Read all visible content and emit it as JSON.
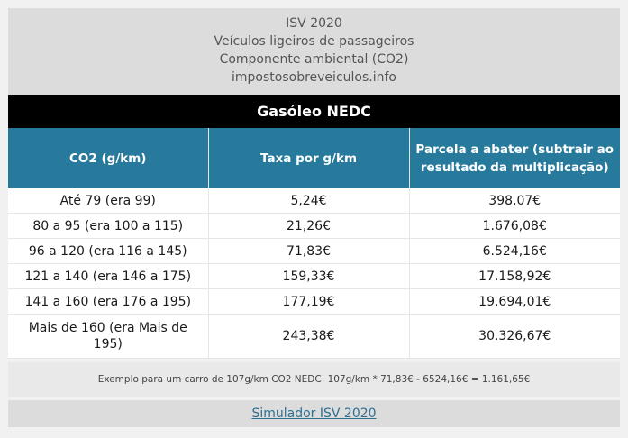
{
  "header": {
    "line1": "ISV 2020",
    "line2": "Veículos ligeiros de passageiros",
    "line3": "Componente ambiental (CO2)",
    "line4": "impostosobreveiculos.info"
  },
  "section_title": "Gasóleo NEDC",
  "table": {
    "columns": [
      "CO2 (g/km)",
      "Taxa por g/km",
      "Parcela a abater (subtrair ao resultado da multiplicação)"
    ],
    "rows": [
      [
        "Até 79 (era 99)",
        "5,24€",
        "398,07€"
      ],
      [
        "80 a 95 (era 100 a 115)",
        "21,26€",
        "1.676,08€"
      ],
      [
        "96 a 120 (era 116 a 145)",
        "71,83€",
        "6.524,16€"
      ],
      [
        "121 a 140 (era 146 a 175)",
        "159,33€",
        "17.158,92€"
      ],
      [
        "141 a 160 (era 176 a 195)",
        "177,19€",
        "19.694,01€"
      ],
      [
        "Mais de 160 (era Mais de 195)",
        "243,38€",
        "30.326,67€"
      ]
    ]
  },
  "example": "Exemplo para um carro de 107g/km CO2 NEDC: 107g/km * 71,83€ - 6524,16€ = 1.161,65€",
  "simulator_link": "Simulador ISV 2020"
}
